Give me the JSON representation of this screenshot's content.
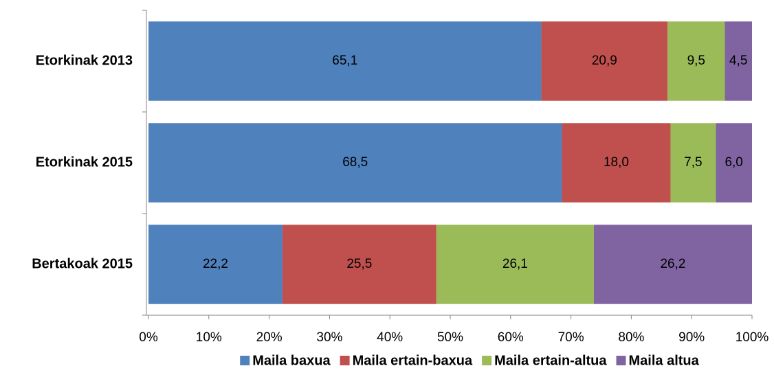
{
  "chart_data": {
    "type": "stacked-bar-horizontal",
    "categories": [
      "Etorkinak 2013",
      "Etorkinak 2015",
      "Bertakoak 2015"
    ],
    "series": [
      {
        "name": "Maila baxua",
        "color": "#4f81bd",
        "values": [
          65.1,
          68.5,
          22.2
        ],
        "value_labels": [
          "65,1",
          "68,5",
          "22,2"
        ]
      },
      {
        "name": "Maila ertain-baxua",
        "color": "#c0504d",
        "values": [
          20.9,
          18.0,
          25.5
        ],
        "value_labels": [
          "20,9",
          "18,0",
          "25,5"
        ]
      },
      {
        "name": "Maila ertain-altua",
        "color": "#9bbb59",
        "values": [
          9.5,
          7.5,
          26.1
        ],
        "value_labels": [
          "9,5",
          "7,5",
          "26,1"
        ]
      },
      {
        "name": "Maila altua",
        "color": "#8064a2",
        "values": [
          4.5,
          6.0,
          26.2
        ],
        "value_labels": [
          "4,5",
          "6,0",
          "26,2"
        ]
      }
    ],
    "xlim": [
      0,
      100
    ],
    "xticks": [
      {
        "value": 0,
        "label": "0%"
      },
      {
        "value": 10,
        "label": "10%"
      },
      {
        "value": 20,
        "label": "20%"
      },
      {
        "value": 30,
        "label": "30%"
      },
      {
        "value": 40,
        "label": "40%"
      },
      {
        "value": 50,
        "label": "50%"
      },
      {
        "value": 60,
        "label": "60%"
      },
      {
        "value": 70,
        "label": "70%"
      },
      {
        "value": 80,
        "label": "80%"
      },
      {
        "value": 90,
        "label": "90%"
      },
      {
        "value": 100,
        "label": "100%"
      }
    ],
    "legend": "bottom"
  }
}
